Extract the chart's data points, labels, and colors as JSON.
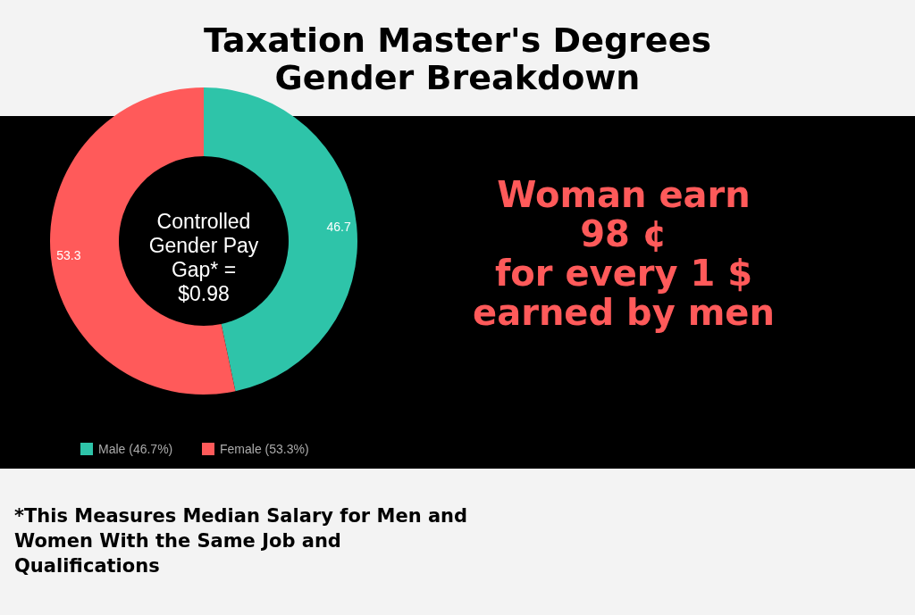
{
  "chart_data": {
    "type": "donut",
    "title": "Taxation Master's Degrees\nGender Breakdown",
    "categories": [
      "Male (46.7%)",
      "Female (53.3%)"
    ],
    "values": [
      46.7,
      53.3
    ],
    "colors": [
      "#2ec4a9",
      "#ff5a5a"
    ],
    "data_labels": true,
    "legend": "bottom",
    "annotations": [
      "Controlled\nGender Pay\nGap* =\n$0.98",
      "Woman earn\n98 ¢\nfor every 1 $\nearned by men",
      "*This Measures Median Salary for Men and\nWomen With the Same Job and\nQualifications"
    ]
  }
}
